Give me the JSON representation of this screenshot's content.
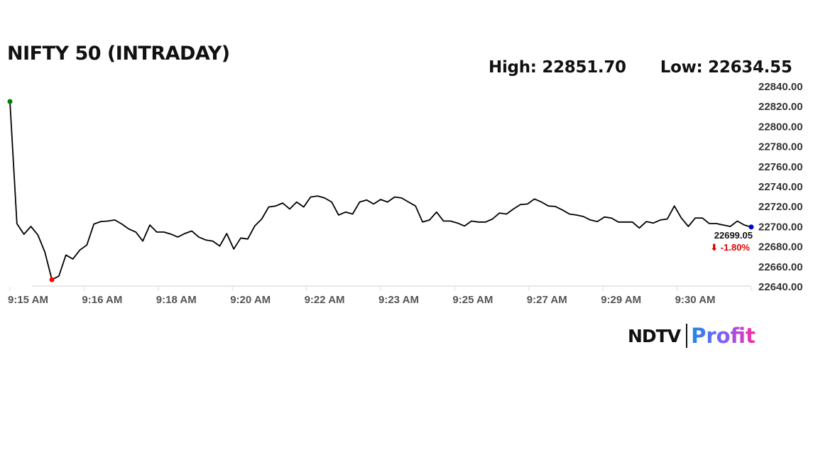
{
  "chart_data": {
    "type": "line",
    "title": "NIFTY 50 (INTRADAY)",
    "high_label": "High: 22851.70",
    "low_label": "Low: 22634.55",
    "x_tick_labels": [
      "9:15 AM",
      "9:16 AM",
      "9:18 AM",
      "9:20 AM",
      "9:22 AM",
      "9:23 AM",
      "9:25 AM",
      "9:27 AM",
      "9:29 AM",
      "9:30 AM"
    ],
    "y_tick_labels": [
      "22640.00",
      "22660.00",
      "22680.00",
      "22700.00",
      "22720.00",
      "22740.00",
      "22760.00",
      "22780.00",
      "22800.00",
      "22820.00",
      "22840.00"
    ],
    "ylim": [
      22640,
      22840
    ],
    "grid": false,
    "values": [
      22824.4,
      22702.4,
      22691.8,
      22699.6,
      22691,
      22674,
      22646.4,
      22650,
      22671,
      22667,
      22676,
      22681,
      22702,
      22704.5,
      22705,
      22706,
      22702,
      22697,
      22694,
      22685,
      22701,
      22694,
      22694,
      22692,
      22689,
      22692.5,
      22695,
      22689,
      22686,
      22685,
      22680,
      22692.5,
      22677,
      22688,
      22687,
      22700,
      22707,
      22719,
      22720,
      22723,
      22717,
      22724,
      22719,
      22729,
      22730,
      22728,
      22724,
      22711,
      22714,
      22712,
      22724,
      22726,
      22722,
      22726.5,
      22724,
      22729,
      22728,
      22724,
      22720,
      22704,
      22706,
      22714,
      22705,
      22705,
      22703,
      22700,
      22705,
      22704,
      22704,
      22707,
      22713,
      22712,
      22717,
      22721.5,
      22722,
      22727,
      22724,
      22720,
      22719.5,
      22716,
      22712,
      22711,
      22709.5,
      22706,
      22704.5,
      22709,
      22708,
      22704,
      22704,
      22704,
      22698,
      22704.5,
      22703,
      22706,
      22707,
      22720,
      22708,
      22699.6,
      22708,
      22708,
      22702.5,
      22702.5,
      22701,
      22699.6,
      22705,
      22701,
      22699.05
    ],
    "last_value_label": "22699.05",
    "change_label": "⬇ -1.80%",
    "colors": {
      "line": "#000000",
      "open_marker": "#008000",
      "low_marker": "#ff0000",
      "last_marker": "#0000cc",
      "change": "#e00000"
    }
  },
  "logo": {
    "left": "NDTV",
    "right": "Profit"
  }
}
